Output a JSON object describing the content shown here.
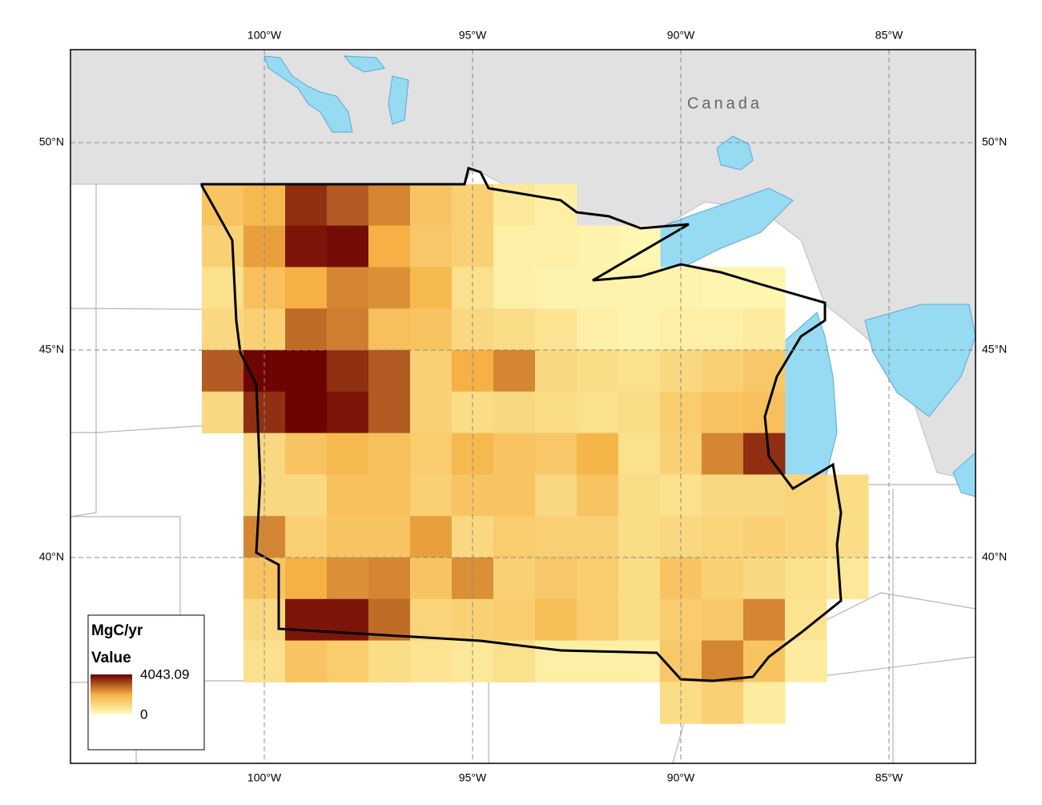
{
  "map": {
    "lon_ticks": [
      {
        "value": -100,
        "label": "100°W"
      },
      {
        "value": -95,
        "label": "95°W"
      },
      {
        "value": -90,
        "label": "90°W"
      },
      {
        "value": -85,
        "label": "85°W"
      }
    ],
    "lat_ticks": [
      {
        "value": 50,
        "label": "50°N"
      },
      {
        "value": 45,
        "label": "45°N"
      },
      {
        "value": 40,
        "label": "40°N"
      }
    ],
    "place_label": "Canada",
    "legend": {
      "title": "MgC/yr",
      "subtitle": "Value",
      "max": 4043.09,
      "min": 0
    },
    "color_ramp": [
      "#ffffbe",
      "#f5b042",
      "#6b0000"
    ],
    "raster": {
      "values": [
        [
          1500,
          1800,
          3500,
          3000,
          2500,
          1500,
          1200,
          600,
          400,
          null,
          null,
          null,
          null,
          null,
          null,
          null
        ],
        [
          1200,
          2200,
          3800,
          3900,
          2000,
          1400,
          1200,
          400,
          400,
          300,
          200,
          null,
          null,
          null,
          null,
          null
        ],
        [
          800,
          1600,
          2000,
          2500,
          2400,
          1800,
          800,
          400,
          300,
          300,
          300,
          300,
          250,
          250,
          null,
          null
        ],
        [
          1000,
          1200,
          2800,
          2600,
          1600,
          1500,
          1000,
          900,
          700,
          400,
          300,
          400,
          400,
          500,
          null,
          null
        ],
        [
          3000,
          4000,
          4000,
          3500,
          3000,
          1200,
          2000,
          2500,
          1000,
          900,
          800,
          1000,
          1200,
          1400,
          null,
          null
        ],
        [
          1000,
          3500,
          4000,
          3800,
          3000,
          1200,
          900,
          1000,
          900,
          800,
          900,
          1300,
          1500,
          1600,
          null,
          null
        ],
        [
          null,
          1000,
          1500,
          1800,
          1600,
          1300,
          1800,
          1500,
          1400,
          1900,
          800,
          1200,
          2500,
          3500,
          null,
          null
        ],
        [
          null,
          1000,
          1000,
          1600,
          1600,
          1200,
          1500,
          1500,
          1000,
          1500,
          900,
          800,
          1000,
          1000,
          1100,
          900
        ],
        [
          null,
          2500,
          1200,
          1500,
          1500,
          2200,
          1000,
          1300,
          1200,
          1200,
          900,
          1000,
          1100,
          1200,
          1100,
          900
        ],
        [
          null,
          1500,
          2000,
          2400,
          2500,
          1500,
          2400,
          1200,
          1400,
          1300,
          900,
          1500,
          1200,
          1000,
          800,
          600
        ],
        [
          null,
          1000,
          3800,
          3800,
          2800,
          1100,
          1200,
          1300,
          1700,
          1300,
          900,
          1300,
          1400,
          2500,
          700,
          null
        ],
        [
          null,
          800,
          1500,
          1300,
          900,
          700,
          600,
          800,
          400,
          400,
          400,
          1400,
          2500,
          1500,
          500,
          null
        ],
        [
          null,
          null,
          null,
          null,
          null,
          null,
          null,
          null,
          null,
          null,
          null,
          900,
          1200,
          500,
          null,
          null
        ]
      ]
    }
  }
}
